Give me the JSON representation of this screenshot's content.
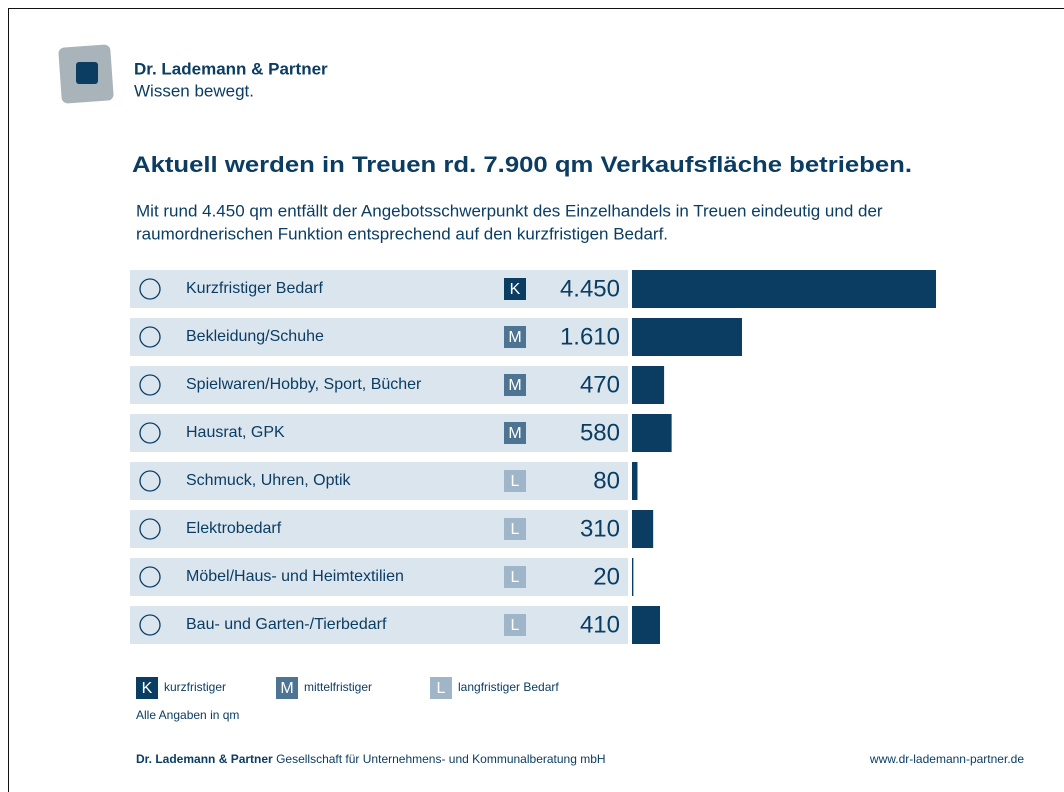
{
  "header": {
    "company": "Dr. Lademann & Partner",
    "tagline": "Wissen bewegt."
  },
  "chart_data": {
    "type": "bar",
    "title": "Aktuell werden in Treuen rd. 7.900 qm Verkaufsfläche betrieben.",
    "subtitle": [
      "Mit rund 4.450 qm entfällt der Angebotsschwerpunkt des Einzelhandels in Treuen eindeutig und der",
      "raumordnerischen Funktion entsprechend auf den kurzfristigen Bedarf."
    ],
    "categories": [
      "Kurzfristiger Bedarf",
      "Bekleidung/Schuhe",
      "Spielwaren/Hobby, Sport, Bücher",
      "Hausrat, GPK",
      "Schmuck, Uhren, Optik",
      "Elektrobedarf",
      "Möbel/Haus- und Heimtextilien",
      "Bau- und Garten-/Tierbedarf"
    ],
    "values": [
      4450,
      1610,
      470,
      580,
      80,
      310,
      20,
      410
    ],
    "value_labels": [
      "4.450",
      "1.610",
      "470",
      "580",
      "80",
      "310",
      "20",
      "410"
    ],
    "badges": [
      "K",
      "M",
      "M",
      "M",
      "L",
      "L",
      "L",
      "L"
    ],
    "color": "#0b3d63"
  },
  "legend": [
    {
      "badge": "K",
      "label": "kurzfristiger",
      "color": "#0b3d63"
    },
    {
      "badge": "M",
      "label": "mittelfristiger",
      "color": "#4d7593"
    },
    {
      "badge": "L",
      "label": "langfristiger Bedarf",
      "color": "#9fb6c8"
    }
  ],
  "note": "Alle Angaben in qm",
  "footer": {
    "company": "Dr. Lademann & Partner",
    "text": "Gesellschaft für Unternehmens- und Kommunalberatung mbH",
    "url": "www.dr-lademann-partner.de"
  }
}
